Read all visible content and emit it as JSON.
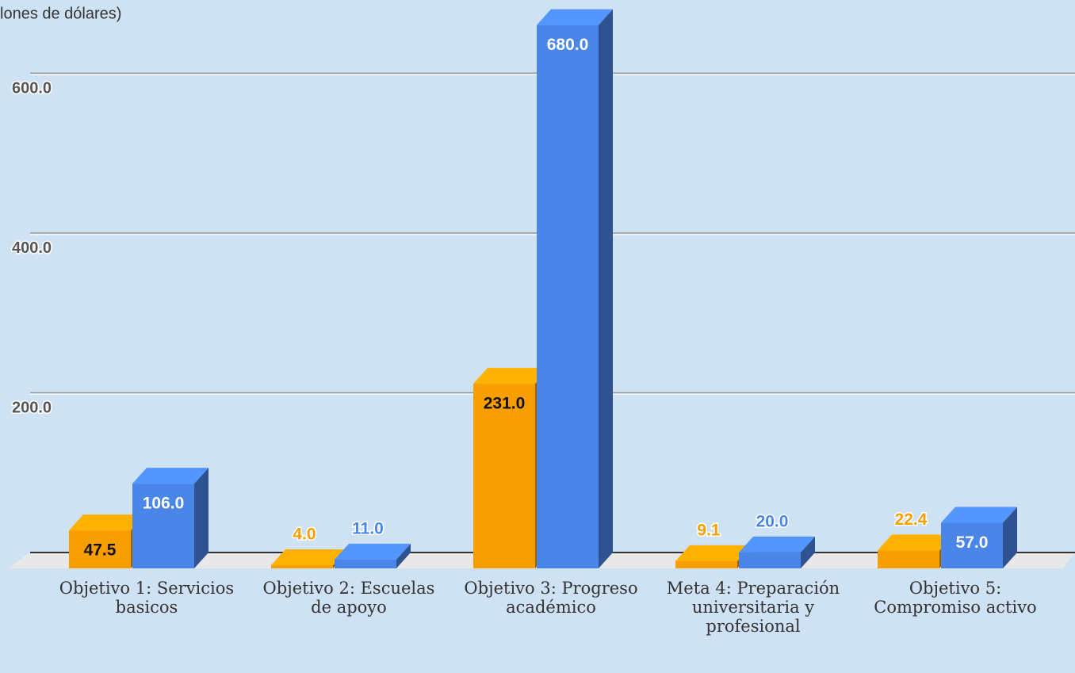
{
  "chart_data": {
    "type": "bar3d",
    "title": "lones de dólares)",
    "categories": [
      "Objetivo 1: Servicios basicos",
      "Objetivo 2: Escuelas de apoyo",
      "Objetivo 3: Progreso académico",
      "Meta 4: Preparación universitaria y profesional",
      "Objetivo 5: Compromiso activo"
    ],
    "series": [
      {
        "color": "#f99e00",
        "values": [
          47.5,
          4.0,
          231.0,
          9.1,
          22.4
        ],
        "value_labels": [
          "47.5",
          "4.0",
          "231.0",
          "9.1",
          "22.4"
        ]
      },
      {
        "color": "#4a86e8",
        "values": [
          106.0,
          11.0,
          680.0,
          20.0,
          57.0
        ],
        "value_labels": [
          "106.0",
          "11.0",
          "680.0",
          "20.0",
          "57.0"
        ]
      }
    ],
    "ylim": [
      0,
      690
    ],
    "yticks": [
      {
        "value": 200,
        "label": "200.0"
      },
      {
        "value": 400,
        "label": "400.0"
      },
      {
        "value": 600,
        "label": "600.0"
      }
    ],
    "grid": true
  }
}
